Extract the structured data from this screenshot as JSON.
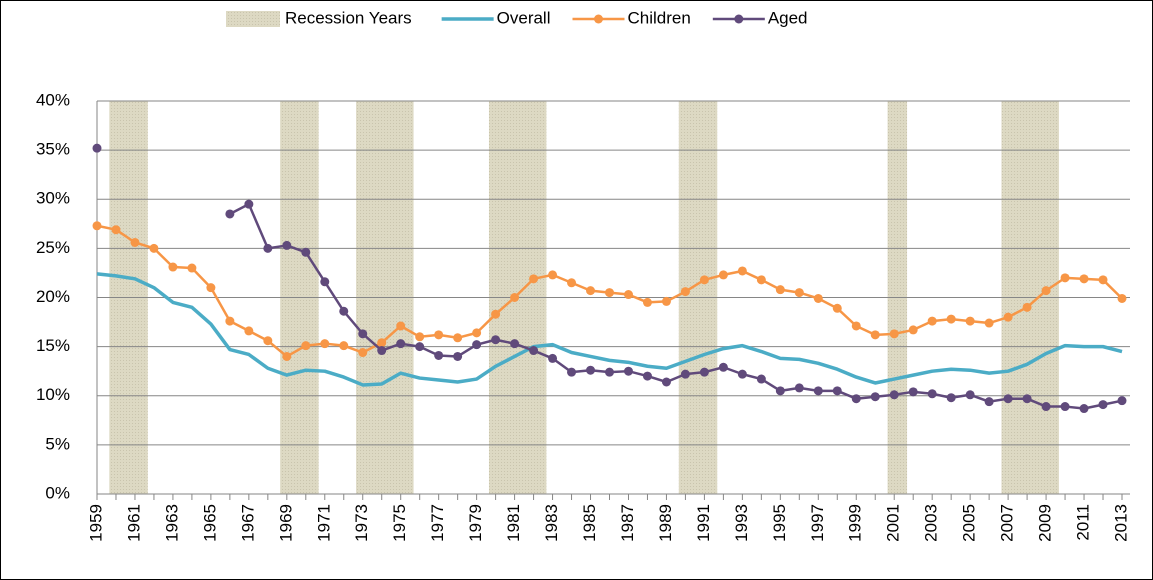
{
  "chart_data": {
    "type": "line",
    "x": [
      1959,
      1960,
      1961,
      1962,
      1963,
      1964,
      1965,
      1966,
      1967,
      1968,
      1969,
      1970,
      1971,
      1972,
      1973,
      1974,
      1975,
      1976,
      1977,
      1978,
      1979,
      1980,
      1981,
      1982,
      1983,
      1984,
      1985,
      1986,
      1987,
      1988,
      1989,
      1990,
      1991,
      1992,
      1993,
      1994,
      1995,
      1996,
      1997,
      1998,
      1999,
      2000,
      2001,
      2002,
      2003,
      2004,
      2005,
      2006,
      2007,
      2008,
      2009,
      2010,
      2011,
      2012,
      2013
    ],
    "xlim": [
      1959,
      2013
    ],
    "xticks": [
      1959,
      1961,
      1963,
      1965,
      1967,
      1969,
      1971,
      1973,
      1975,
      1977,
      1979,
      1981,
      1983,
      1985,
      1987,
      1989,
      1991,
      1993,
      1995,
      1997,
      1999,
      2001,
      2003,
      2005,
      2007,
      2009,
      2011,
      2013
    ],
    "recession": {
      "name": "Recession Years",
      "color": "#ddd9c3",
      "years": [
        1960,
        1961,
        1969,
        1970,
        1973,
        1974,
        1975,
        1980,
        1981,
        1982,
        1990,
        1991,
        2001,
        2007,
        2008,
        2009
      ]
    },
    "series": [
      {
        "name": "Overall",
        "color": "#4bacc6",
        "markers": false,
        "values": [
          22.4,
          22.2,
          21.9,
          21.0,
          19.5,
          19.0,
          17.3,
          14.7,
          14.2,
          12.8,
          12.1,
          12.6,
          12.5,
          11.9,
          11.1,
          11.2,
          12.3,
          11.8,
          11.6,
          11.4,
          11.7,
          13.0,
          14.0,
          15.0,
          15.2,
          14.4,
          14.0,
          13.6,
          13.4,
          13.0,
          12.8,
          13.5,
          14.2,
          14.8,
          15.1,
          14.5,
          13.8,
          13.7,
          13.3,
          12.7,
          11.9,
          11.3,
          11.7,
          12.1,
          12.5,
          12.7,
          12.6,
          12.3,
          12.5,
          13.2,
          14.3,
          15.1,
          15.0,
          15.0,
          14.5
        ]
      },
      {
        "name": "Children",
        "color": "#f79646",
        "markers": true,
        "values": [
          27.3,
          26.9,
          25.6,
          25.0,
          23.1,
          23.0,
          21.0,
          17.6,
          16.6,
          15.6,
          14.0,
          15.1,
          15.3,
          15.1,
          14.4,
          15.4,
          17.1,
          16.0,
          16.2,
          15.9,
          16.4,
          18.3,
          20.0,
          21.9,
          22.3,
          21.5,
          20.7,
          20.5,
          20.3,
          19.5,
          19.6,
          20.6,
          21.8,
          22.3,
          22.7,
          21.8,
          20.8,
          20.5,
          19.9,
          18.9,
          17.1,
          16.2,
          16.3,
          16.7,
          17.6,
          17.8,
          17.6,
          17.4,
          18.0,
          19.0,
          20.7,
          22.0,
          21.9,
          21.8,
          19.9
        ]
      },
      {
        "name": "Aged",
        "color": "#604a7b",
        "markers": true,
        "values": [
          35.2,
          null,
          null,
          null,
          null,
          null,
          null,
          28.5,
          29.5,
          25.0,
          25.3,
          24.6,
          21.6,
          18.6,
          16.3,
          14.6,
          15.3,
          15.0,
          14.1,
          14.0,
          15.2,
          15.7,
          15.3,
          14.6,
          13.8,
          12.4,
          12.6,
          12.4,
          12.5,
          12.0,
          11.4,
          12.2,
          12.4,
          12.9,
          12.2,
          11.7,
          10.5,
          10.8,
          10.5,
          10.5,
          9.7,
          9.9,
          10.1,
          10.4,
          10.2,
          9.8,
          10.1,
          9.4,
          9.7,
          9.7,
          8.9,
          8.9,
          8.7,
          9.1,
          9.5
        ]
      }
    ],
    "ylim": [
      0,
      40
    ],
    "yticks": [
      {
        "value": 0,
        "label": "0%"
      },
      {
        "value": 5,
        "label": "5%"
      },
      {
        "value": 10,
        "label": "10%"
      },
      {
        "value": 15,
        "label": "15%"
      },
      {
        "value": 20,
        "label": "20%"
      },
      {
        "value": 25,
        "label": "25%"
      },
      {
        "value": 30,
        "label": "30%"
      },
      {
        "value": 35,
        "label": "35%"
      },
      {
        "value": 40,
        "label": "40%"
      }
    ],
    "grid": true,
    "legend": "top"
  }
}
